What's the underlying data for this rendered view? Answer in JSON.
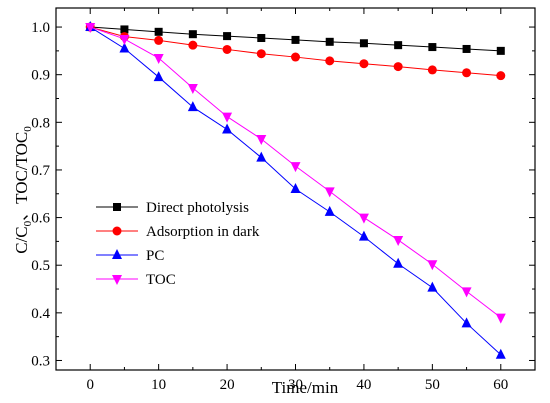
{
  "chart_data": {
    "type": "line",
    "xlabel": "Time/min",
    "ylabel_parts": [
      "C/C",
      "0",
      "、TOC/TOC",
      "0"
    ],
    "xlim": [
      -5,
      65
    ],
    "ylim": [
      0.28,
      1.04
    ],
    "x_ticks": [
      0,
      10,
      20,
      30,
      40,
      50,
      60
    ],
    "y_ticks": [
      0.3,
      0.4,
      0.5,
      0.6,
      0.7,
      0.8,
      0.9,
      1.0
    ],
    "y_tick_labels": [
      "0.3",
      "0.4",
      "0.5",
      "0.6",
      "0.7",
      "0.8",
      "0.9",
      "1.0"
    ],
    "legend_position": "lower-left",
    "x": [
      0,
      5,
      10,
      15,
      20,
      25,
      30,
      35,
      40,
      45,
      50,
      55,
      60
    ],
    "series": [
      {
        "name": "Direct photolysis",
        "color": "#000000",
        "marker": "square",
        "values": [
          1.0,
          0.995,
          0.99,
          0.985,
          0.981,
          0.977,
          0.973,
          0.969,
          0.966,
          0.962,
          0.958,
          0.954,
          0.95
        ]
      },
      {
        "name": "Adsorption in dark",
        "color": "#ff0000",
        "marker": "circle",
        "values": [
          1.0,
          0.98,
          0.972,
          0.962,
          0.953,
          0.944,
          0.937,
          0.929,
          0.923,
          0.917,
          0.91,
          0.904,
          0.898
        ]
      },
      {
        "name": "PC",
        "color": "#0000ff",
        "marker": "triangle-up",
        "values": [
          1.0,
          0.955,
          0.895,
          0.832,
          0.785,
          0.726,
          0.66,
          0.612,
          0.56,
          0.503,
          0.453,
          0.378,
          0.312
        ]
      },
      {
        "name": "TOC",
        "color": "#ff00ff",
        "marker": "triangle-down",
        "values": [
          1.0,
          0.975,
          0.935,
          0.872,
          0.812,
          0.765,
          0.708,
          0.655,
          0.6,
          0.553,
          0.502,
          0.445,
          0.39
        ]
      }
    ]
  }
}
